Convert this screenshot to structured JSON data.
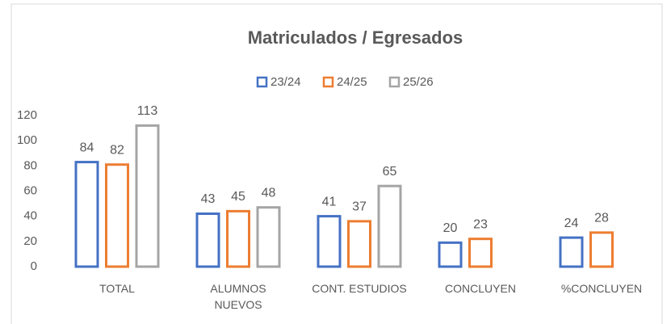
{
  "chart_data": {
    "type": "bar",
    "title": "Matriculados / Egresados",
    "categories": [
      "TOTAL",
      "ALUMNOS NUEVOS",
      "CONT. ESTUDIOS",
      "CONCLUYEN",
      "%CONCLUYEN"
    ],
    "series": [
      {
        "name": "23/24",
        "color": "#4472c4",
        "values": [
          84,
          43,
          41,
          20,
          24
        ]
      },
      {
        "name": "24/25",
        "color": "#ed7d31",
        "values": [
          82,
          45,
          37,
          23,
          28
        ]
      },
      {
        "name": "25/26",
        "color": "#a5a5a5",
        "values": [
          113,
          48,
          65,
          null,
          null
        ]
      }
    ],
    "ylim": [
      0,
      120
    ],
    "yticks": [
      0,
      20,
      40,
      60,
      80,
      100,
      120
    ],
    "grid": false,
    "legend": "top"
  }
}
